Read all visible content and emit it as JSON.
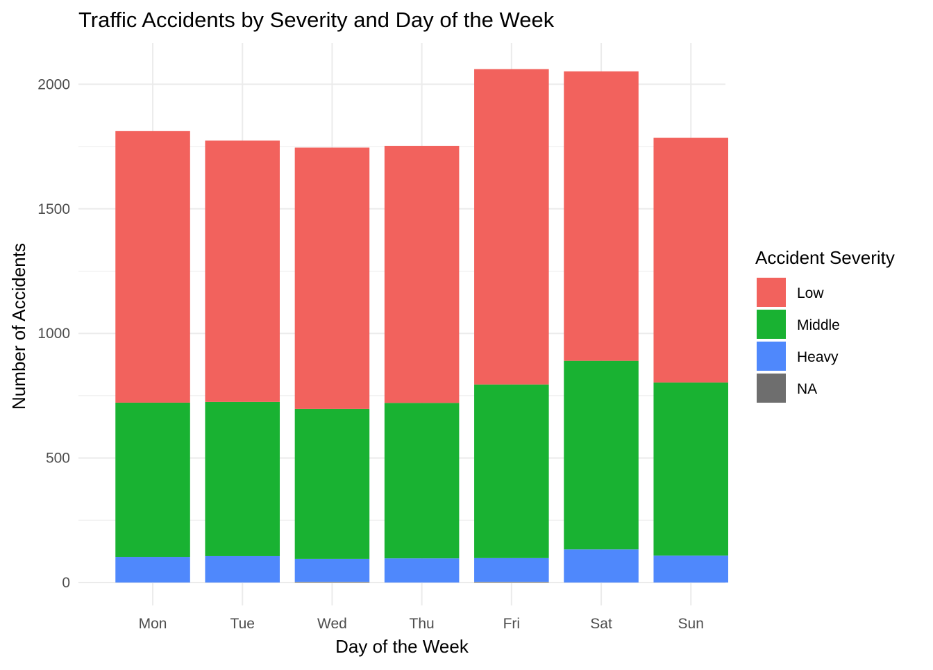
{
  "chart_data": {
    "type": "bar",
    "stacked": true,
    "title": "Traffic Accidents by Severity and Day of the Week",
    "xlabel": "Day of the Week",
    "ylabel": "Number of Accidents",
    "categories": [
      "Mon",
      "Tue",
      "Wed",
      "Thu",
      "Fri",
      "Sat",
      "Sun"
    ],
    "ylim": [
      0,
      2165
    ],
    "yticks": [
      0,
      500,
      1000,
      1500,
      2000
    ],
    "yticks_labels": [
      "0",
      "500",
      "1000",
      "1500",
      "2000"
    ],
    "grid": true,
    "legend": {
      "title": "Accident Severity",
      "placement": "right",
      "entries": [
        "Low",
        "Middle",
        "Heavy",
        "NA"
      ]
    },
    "series": [
      {
        "name": "NA",
        "color": "#6e6e6e",
        "values": [
          0,
          0,
          3,
          0,
          3,
          0,
          0
        ]
      },
      {
        "name": "Heavy",
        "color": "#4f88fc",
        "values": [
          103,
          106,
          92,
          97,
          95,
          133,
          108
        ]
      },
      {
        "name": "Middle",
        "color": "#19b232",
        "values": [
          619,
          619,
          602,
          624,
          697,
          757,
          695
        ]
      },
      {
        "name": "Low",
        "color": "#f2625d",
        "values": [
          1090,
          1049,
          1049,
          1032,
          1266,
          1162,
          982
        ]
      }
    ]
  }
}
